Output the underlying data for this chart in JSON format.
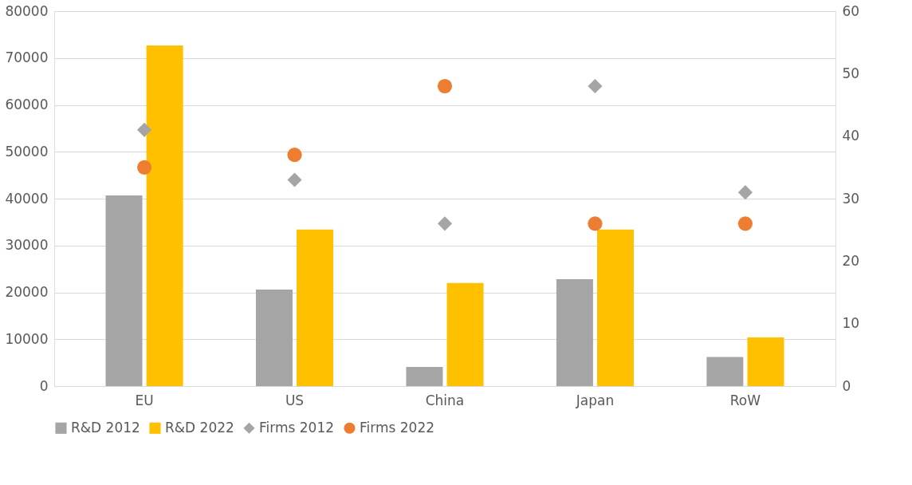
{
  "chart_data": {
    "type": "bar",
    "categories": [
      "EU",
      "US",
      "China",
      "Japan",
      "RoW"
    ],
    "series": [
      {
        "name": "R&D 2012",
        "color": "#a5a5a5",
        "values": [
          40700,
          20600,
          4100,
          22800,
          6200
        ]
      },
      {
        "name": "R&D 2022",
        "color": "#ffc000",
        "values": [
          72700,
          33400,
          22000,
          33400,
          10400
        ]
      },
      {
        "name": "Firms 2012",
        "type": "scatter",
        "axis": "y2",
        "marker": "diamond",
        "color": "#a5a5a5",
        "values": [
          41,
          33,
          26,
          48,
          31
        ]
      },
      {
        "name": "Firms 2022",
        "type": "scatter",
        "axis": "y2",
        "marker": "circle",
        "color": "#ed7d31",
        "values": [
          35,
          37,
          48,
          26,
          26
        ]
      }
    ],
    "ylim": [
      0,
      80000
    ],
    "yticks": [
      0,
      10000,
      20000,
      30000,
      40000,
      50000,
      60000,
      70000,
      80000
    ],
    "y2lim": [
      0,
      60
    ],
    "y2ticks": [
      0,
      10,
      20,
      30,
      40,
      50,
      60
    ],
    "grid": "y",
    "legend": "bottom"
  }
}
